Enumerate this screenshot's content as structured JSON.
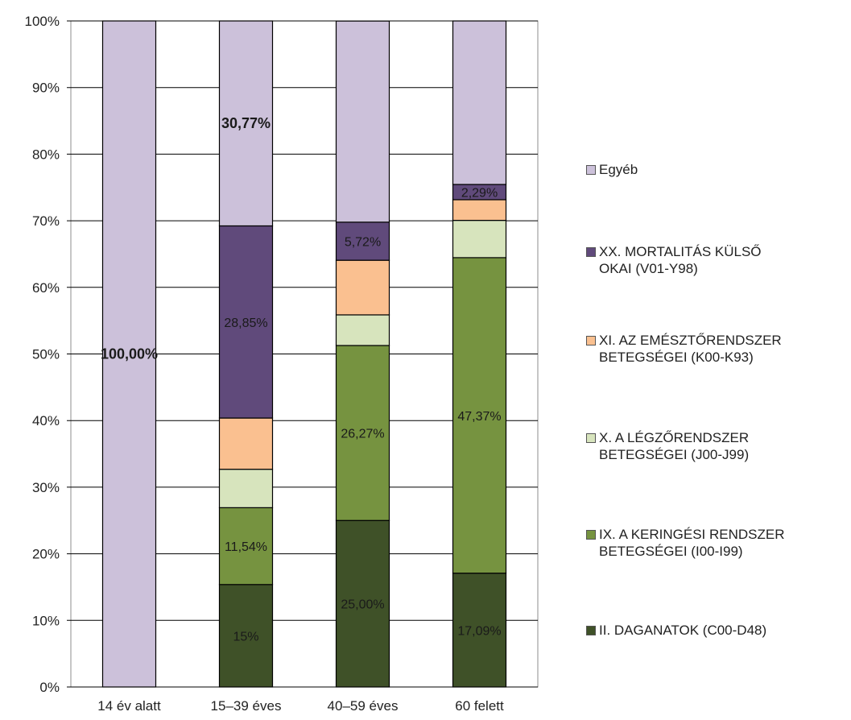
{
  "chart_data": {
    "type": "bar",
    "stacked": true,
    "percent_stacked": true,
    "categories": [
      "14 év alatt",
      "15–39 éves",
      "40–59 éves",
      "60 felett"
    ],
    "yticks": [
      "0%",
      "10%",
      "20%",
      "30%",
      "40%",
      "50%",
      "60%",
      "70%",
      "80%",
      "90%",
      "100%"
    ],
    "ylim": [
      0,
      100
    ],
    "grid": true,
    "legend_position": "right",
    "series": [
      {
        "name": "II. DAGANATOK (C00-D48)",
        "color": "#3f5128",
        "values": [
          0,
          15.38,
          25.0,
          17.09
        ],
        "labels": [
          "",
          "15%",
          "25,00%",
          "17,09%"
        ]
      },
      {
        "name": "IX. A KERINGÉSI RENDSZER BETEGSÉGEI (I00-I99)",
        "color": "#769340",
        "values": [
          0,
          11.54,
          26.27,
          47.37
        ],
        "labels": [
          "",
          "11,54%",
          "26,27%",
          "47,37%"
        ]
      },
      {
        "name": "X. A LÉGZŐRENDSZER BETEGSÉGEI (J00-J99)",
        "color": "#d7e4bd",
        "values": [
          0,
          5.77,
          4.6,
          5.6
        ],
        "labels": [
          "",
          "",
          "",
          ""
        ]
      },
      {
        "name": "XI. AZ EMÉSZTŐRENDSZER BETEGSÉGEI (K00-K93)",
        "color": "#fac090",
        "values": [
          0,
          7.69,
          8.2,
          3.1
        ],
        "labels": [
          "",
          "",
          "",
          ""
        ]
      },
      {
        "name": "XX. MORTALITÁS KÜLSŐ OKAI (V01-Y98)",
        "color": "#604a7b",
        "values": [
          0,
          28.85,
          5.72,
          2.29
        ],
        "labels": [
          "",
          "28,85%",
          "5,72%",
          "2,29%"
        ]
      },
      {
        "name": "Egyéb",
        "color": "#ccc1da",
        "values": [
          100,
          30.77,
          30.19,
          24.55
        ],
        "labels": [
          "100,00%",
          "30,77%",
          "",
          ""
        ]
      }
    ]
  },
  "legend": [
    {
      "label": "Egyéb",
      "color": "#ccc1da"
    },
    {
      "label": "XX. MORTALITÁS KÜLSŐ\nOKAI (V01-Y98)",
      "color": "#604a7b"
    },
    {
      "label": "XI. AZ EMÉSZTŐRENDSZER\nBETEGSÉGEI (K00-K93)",
      "color": "#fac090"
    },
    {
      "label": "X. A LÉGZŐRENDSZER\nBETEGSÉGEI (J00-J99)",
      "color": "#d7e4bd"
    },
    {
      "label": "IX. A KERINGÉSI RENDSZER\nBETEGSÉGEI (I00-I99)",
      "color": "#769340"
    },
    {
      "label": "II. DAGANATOK (C00-D48)",
      "color": "#3f5128"
    }
  ]
}
